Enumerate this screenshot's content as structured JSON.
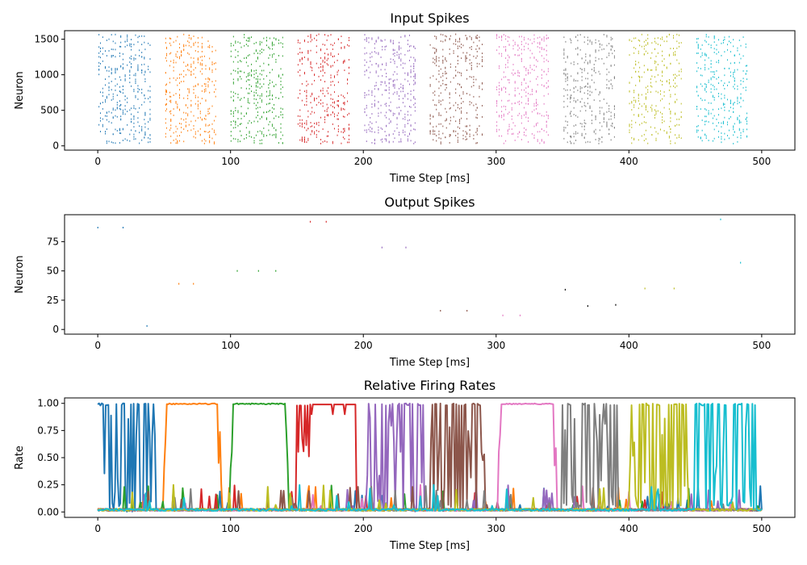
{
  "colors": [
    "#1f77b4",
    "#ff7f0e",
    "#2ca02c",
    "#d62728",
    "#9467bd",
    "#8c564b",
    "#e377c2",
    "#7f7f7f",
    "#bcbd22",
    "#17becf"
  ],
  "chart_data": [
    {
      "type": "scatter",
      "title": "Input Spikes",
      "xlabel": "Time Step [ms]",
      "ylabel": "Neuron",
      "xlim": [
        -25,
        525
      ],
      "ylim": [
        -60,
        1620
      ],
      "xticks": [
        0,
        100,
        200,
        300,
        400,
        500
      ],
      "yticks": [
        0,
        500,
        1000,
        1500
      ],
      "legend": "none",
      "grid": false,
      "segments": [
        {
          "t_start": 0,
          "t_end": 40,
          "color_index": 0
        },
        {
          "t_start": 50,
          "t_end": 90,
          "color_index": 1
        },
        {
          "t_start": 100,
          "t_end": 140,
          "color_index": 2
        },
        {
          "t_start": 150,
          "t_end": 190,
          "color_index": 3
        },
        {
          "t_start": 200,
          "t_end": 240,
          "color_index": 4
        },
        {
          "t_start": 250,
          "t_end": 290,
          "color_index": 5
        },
        {
          "t_start": 300,
          "t_end": 340,
          "color_index": 6
        },
        {
          "t_start": 350,
          "t_end": 390,
          "color_index": 7
        },
        {
          "t_start": 400,
          "t_end": 440,
          "color_index": 8
        },
        {
          "t_start": 450,
          "t_end": 490,
          "color_index": 9
        }
      ],
      "neuron_range": [
        30,
        1570
      ]
    },
    {
      "type": "scatter",
      "title": "Output Spikes",
      "xlabel": "Time Step [ms]",
      "ylabel": "Neuron",
      "xlim": [
        -25,
        525
      ],
      "ylim": [
        -4,
        98
      ],
      "xticks": [
        0,
        100,
        200,
        300,
        400,
        500
      ],
      "yticks": [
        0,
        25,
        50,
        75
      ],
      "legend": "none",
      "grid": false,
      "points": [
        {
          "x": 0,
          "y": 87,
          "c": 0
        },
        {
          "x": 19,
          "y": 87,
          "c": 0
        },
        {
          "x": 37,
          "y": 3,
          "c": 0
        },
        {
          "x": 61,
          "y": 39,
          "c": 1
        },
        {
          "x": 72,
          "y": 39,
          "c": 1
        },
        {
          "x": 105,
          "y": 50,
          "c": 2
        },
        {
          "x": 121,
          "y": 50,
          "c": 2
        },
        {
          "x": 134,
          "y": 50,
          "c": 2
        },
        {
          "x": 160,
          "y": 92,
          "c": 3
        },
        {
          "x": 172,
          "y": 92,
          "c": 3
        },
        {
          "x": 214,
          "y": 70,
          "c": 4
        },
        {
          "x": 232,
          "y": 70,
          "c": 4
        },
        {
          "x": 258,
          "y": 16,
          "c": 5
        },
        {
          "x": 278,
          "y": 16,
          "c": 5
        },
        {
          "x": 305,
          "y": 12,
          "c": 6
        },
        {
          "x": 318,
          "y": 12,
          "c": 6
        },
        {
          "x": 352,
          "y": 34,
          "c": 7
        },
        {
          "x": 369,
          "y": 20,
          "c": 7
        },
        {
          "x": 390,
          "y": 21,
          "c": 7
        },
        {
          "x": 412,
          "y": 35,
          "c": 8
        },
        {
          "x": 434,
          "y": 35,
          "c": 8
        },
        {
          "x": 469,
          "y": 94,
          "c": 9
        },
        {
          "x": 484,
          "y": 57,
          "c": 9
        }
      ]
    },
    {
      "type": "line",
      "title": "Relative Firing Rates",
      "xlabel": "Time Step [ms]",
      "ylabel": "Rate",
      "xlim": [
        -25,
        525
      ],
      "ylim": [
        -0.05,
        1.05
      ],
      "xticks": [
        0,
        100,
        200,
        300,
        400,
        500
      ],
      "yticks": [
        0.0,
        0.25,
        0.5,
        0.75,
        1.0
      ],
      "ytick_labels": [
        "0.00",
        "0.25",
        "0.50",
        "0.75",
        "1.00"
      ],
      "legend": "none",
      "grid": false,
      "x_end": 500,
      "baseline": 0.01,
      "series": [
        {
          "color_index": 0,
          "active": [
            0,
            43
          ],
          "mode": "noisy"
        },
        {
          "color_index": 1,
          "active": [
            50,
            92
          ],
          "mode": "plateau"
        },
        {
          "color_index": 2,
          "active": [
            100,
            143
          ],
          "mode": "plateau"
        },
        {
          "color_index": 3,
          "active": [
            150,
            194
          ],
          "mode": "mixed"
        },
        {
          "color_index": 4,
          "active": [
            200,
            245
          ],
          "mode": "noisy"
        },
        {
          "color_index": 5,
          "active": [
            250,
            293
          ],
          "mode": "noisy"
        },
        {
          "color_index": 6,
          "active": [
            302,
            345
          ],
          "mode": "plateau"
        },
        {
          "color_index": 7,
          "active": [
            350,
            392
          ],
          "mode": "noisy"
        },
        {
          "color_index": 8,
          "active": [
            400,
            444
          ],
          "mode": "noisy"
        },
        {
          "color_index": 9,
          "active": [
            450,
            495
          ],
          "mode": "noisy"
        }
      ]
    }
  ]
}
